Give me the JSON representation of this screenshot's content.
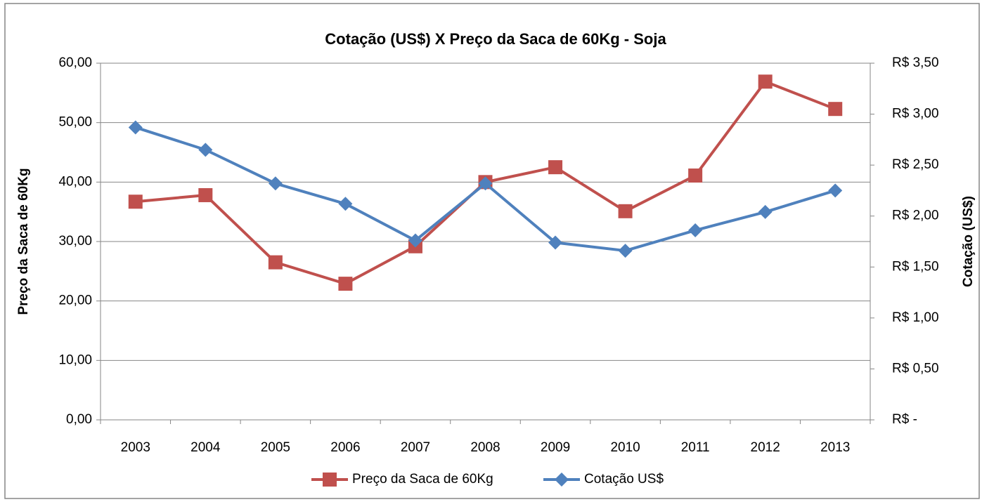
{
  "chart_data": {
    "type": "line",
    "title": "Cotação (US$) X Preço da Saca de 60Kg - Soja",
    "ylabel": "Preço da Saca de 60Kg",
    "y2label": "Cotação (US$)",
    "categories": [
      "2003",
      "2004",
      "2005",
      "2006",
      "2007",
      "2008",
      "2009",
      "2010",
      "2011",
      "2012",
      "2013"
    ],
    "series": [
      {
        "name": "Preço da Saca de 60Kg",
        "color": "#c0504d",
        "marker": "square",
        "axis": "y",
        "values": [
          36.7,
          37.8,
          26.5,
          22.9,
          29.2,
          40.0,
          42.5,
          35.1,
          41.1,
          56.9,
          52.3
        ]
      },
      {
        "name": "Cotação US$",
        "color": "#4f81bd",
        "marker": "diamond",
        "axis": "y2",
        "values": [
          2.87,
          2.65,
          2.32,
          2.12,
          1.76,
          2.32,
          1.74,
          1.66,
          1.86,
          2.04,
          2.25
        ]
      }
    ],
    "ylim": [
      0,
      60
    ],
    "yticks": [
      {
        "value": 0,
        "label": "0,00"
      },
      {
        "value": 10,
        "label": "10,00"
      },
      {
        "value": 20,
        "label": "20,00"
      },
      {
        "value": 30,
        "label": "30,00"
      },
      {
        "value": 40,
        "label": "40,00"
      },
      {
        "value": 50,
        "label": "50,00"
      },
      {
        "value": 60,
        "label": "60,00"
      }
    ],
    "y2lim": [
      0,
      3.5
    ],
    "y2ticks": [
      {
        "value": 0,
        "label": "R$ -"
      },
      {
        "value": 0.5,
        "label": "R$ 0,50"
      },
      {
        "value": 1,
        "label": "R$ 1,00"
      },
      {
        "value": 1.5,
        "label": "R$ 1,50"
      },
      {
        "value": 2,
        "label": "R$ 2,00"
      },
      {
        "value": 2.5,
        "label": "R$ 2,50"
      },
      {
        "value": 3,
        "label": "R$ 3,00"
      },
      {
        "value": 3.5,
        "label": "R$ 3,50"
      }
    ],
    "grid": true,
    "legend": "bottom"
  }
}
